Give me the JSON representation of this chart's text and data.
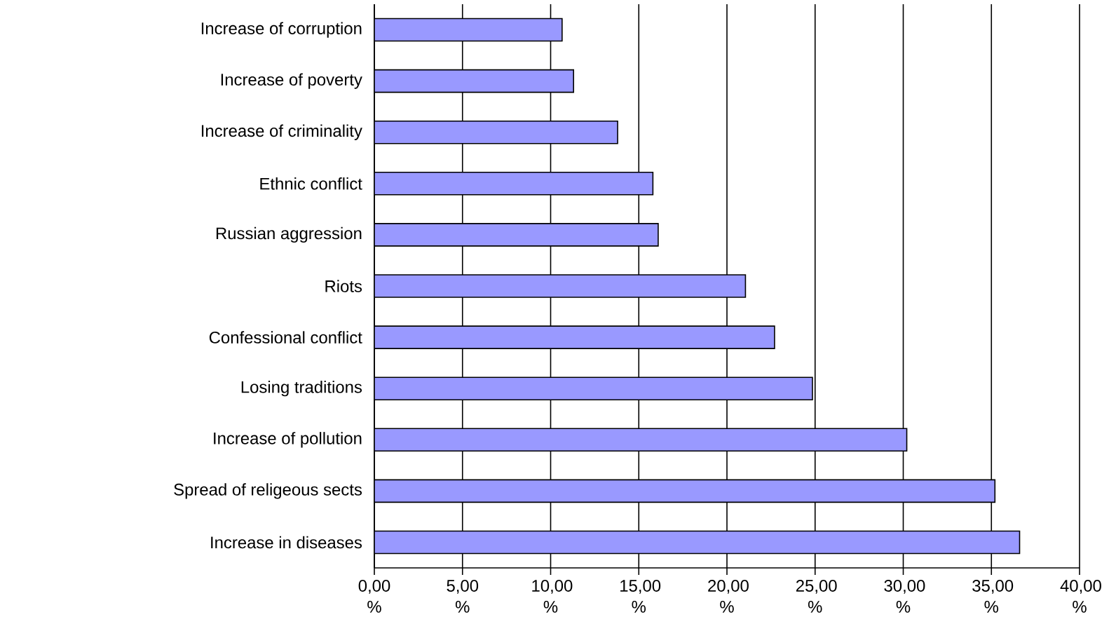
{
  "chart_data": {
    "type": "bar",
    "orientation": "horizontal",
    "categories": [
      "Increase of corruption",
      "Increase of poverty",
      "Increase of criminality",
      "Ethnic conflict",
      "Russian aggression",
      "Riots",
      "Confessional conflict",
      "Losing traditions",
      "Increase of pollution",
      "Spread of religeous sects",
      "Increase in diseases"
    ],
    "values": [
      10.65,
      11.3,
      13.8,
      15.8,
      16.1,
      21.05,
      22.7,
      24.85,
      30.2,
      35.2,
      36.6
    ],
    "color": "#9999ff",
    "xlim": [
      0,
      40
    ],
    "xticks": [
      {
        "value": 0,
        "label": "0,00 %"
      },
      {
        "value": 5,
        "label": "5,00 %"
      },
      {
        "value": 10,
        "label": "10,00 %"
      },
      {
        "value": 15,
        "label": "15,00 %"
      },
      {
        "value": 20,
        "label": "20,00 %"
      },
      {
        "value": 25,
        "label": "25,00 %"
      },
      {
        "value": 30,
        "label": "30,00 %"
      },
      {
        "value": 35,
        "label": "35,00 %"
      },
      {
        "value": 40,
        "label": "40,00 %"
      }
    ],
    "grid": "x"
  }
}
